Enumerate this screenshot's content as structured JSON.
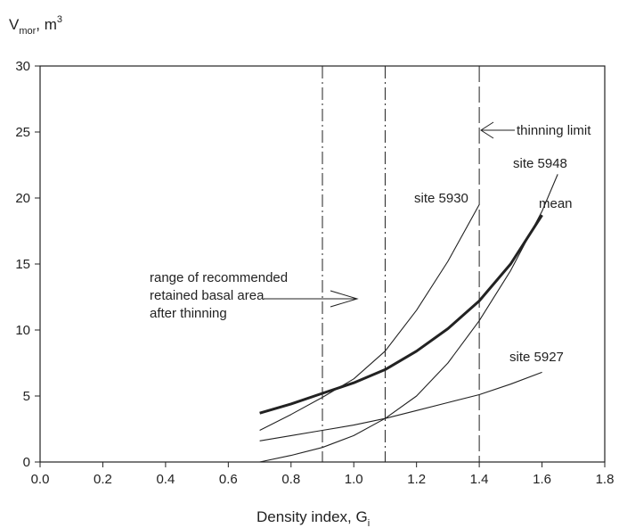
{
  "chart_data": {
    "type": "line",
    "ylabel": {
      "main": "V",
      "sub": "mor",
      "unit": ", m",
      "sup": "3"
    },
    "xlabel": {
      "main": "Density index, G",
      "sub": "i"
    },
    "xlim": [
      0.0,
      1.8
    ],
    "ylim": [
      0,
      30
    ],
    "x_ticks": [
      "0.0",
      "0.2",
      "0.4",
      "0.6",
      "0.8",
      "1.0",
      "1.2",
      "1.4",
      "1.6",
      "1.8"
    ],
    "y_ticks": [
      "0",
      "5",
      "10",
      "15",
      "20",
      "25",
      "30"
    ],
    "grid": false,
    "series": [
      {
        "name": "mean",
        "bold": true,
        "x": [
          0.7,
          0.8,
          0.9,
          1.0,
          1.1,
          1.2,
          1.3,
          1.4,
          1.5,
          1.6
        ],
        "y": [
          3.7,
          4.4,
          5.2,
          6.0,
          7.0,
          8.4,
          10.1,
          12.2,
          15.0,
          18.7
        ]
      },
      {
        "name": "site 5930",
        "x": [
          0.7,
          0.8,
          0.9,
          1.0,
          1.1,
          1.2,
          1.3,
          1.4
        ],
        "y": [
          2.4,
          3.6,
          4.9,
          6.3,
          8.4,
          11.5,
          15.2,
          19.5
        ]
      },
      {
        "name": "site 5948",
        "x": [
          0.7,
          0.8,
          0.9,
          1.0,
          1.1,
          1.2,
          1.3,
          1.4,
          1.5,
          1.6,
          1.65
        ],
        "y": [
          0.0,
          0.5,
          1.1,
          2.0,
          3.3,
          5.0,
          7.5,
          10.7,
          14.5,
          19.0,
          21.8
        ]
      },
      {
        "name": "site 5927",
        "x": [
          0.7,
          0.8,
          0.9,
          1.0,
          1.1,
          1.2,
          1.3,
          1.4,
          1.5,
          1.6
        ],
        "y": [
          1.6,
          2.0,
          2.4,
          2.8,
          3.3,
          3.9,
          4.5,
          5.1,
          5.9,
          6.8
        ]
      }
    ],
    "vertical_lines": [
      {
        "x": 0.9,
        "style": "dash-dot"
      },
      {
        "x": 1.1,
        "style": "dash-dot"
      },
      {
        "x": 1.4,
        "style": "long-dash"
      }
    ],
    "annotations": {
      "thinning_limit": "thinning limit",
      "range_line1": "range of recommended",
      "range_line2": "retained basal area",
      "range_line3": "after thinning"
    }
  }
}
